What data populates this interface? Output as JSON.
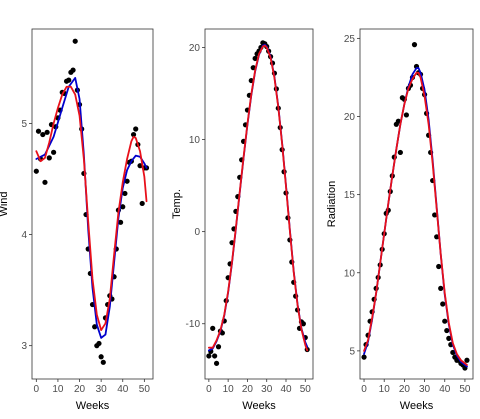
{
  "colors": {
    "points": "#000000",
    "smooth_blue": "#0000cc",
    "smooth_red": "#e8101a",
    "axis": "#333333",
    "tick_text": "#4d4d4d",
    "background": "#ffffff"
  },
  "chart_data": [
    {
      "type": "scatter",
      "xlabel": "Weeks",
      "ylabel": "Wind",
      "xlim": [
        -2,
        54
      ],
      "ylim": [
        2.7,
        5.85
      ],
      "xticks": [
        0,
        10,
        20,
        30,
        40,
        50
      ],
      "yticks": [
        3,
        4,
        5
      ],
      "xtick_labels": [
        "0",
        "10",
        "20",
        "30",
        "40",
        "50"
      ],
      "ytick_labels": [
        "3",
        "4",
        "5"
      ],
      "points": [
        [
          0,
          4.57
        ],
        [
          1,
          4.93
        ],
        [
          2,
          4.68
        ],
        [
          3,
          4.9
        ],
        [
          4,
          4.47
        ],
        [
          5,
          4.92
        ],
        [
          6,
          4.69
        ],
        [
          7,
          4.99
        ],
        [
          8,
          4.74
        ],
        [
          9,
          4.97
        ],
        [
          10,
          5.05
        ],
        [
          11,
          5.12
        ],
        [
          12,
          5.28
        ],
        [
          13,
          5.27
        ],
        [
          14,
          5.38
        ],
        [
          15,
          5.39
        ],
        [
          16,
          5.46
        ],
        [
          17,
          5.48
        ],
        [
          18,
          5.74
        ],
        [
          19,
          5.3
        ],
        [
          20,
          5.17
        ],
        [
          21,
          4.95
        ],
        [
          22,
          4.55
        ],
        [
          23,
          4.18
        ],
        [
          24,
          3.87
        ],
        [
          25,
          3.65
        ],
        [
          26,
          3.37
        ],
        [
          27,
          3.17
        ],
        [
          28,
          3.0
        ],
        [
          29,
          3.02
        ],
        [
          30,
          2.9
        ],
        [
          31,
          2.85
        ],
        [
          32,
          3.25
        ],
        [
          33,
          3.37
        ],
        [
          34,
          3.45
        ],
        [
          35,
          3.42
        ],
        [
          36,
          3.62
        ],
        [
          37,
          3.87
        ],
        [
          38,
          4.22
        ],
        [
          39,
          4.11
        ],
        [
          40,
          4.25
        ],
        [
          41,
          4.37
        ],
        [
          42,
          4.48
        ],
        [
          43,
          4.65
        ],
        [
          44,
          4.66
        ],
        [
          45,
          4.9
        ],
        [
          46,
          4.95
        ],
        [
          47,
          4.81
        ],
        [
          48,
          4.62
        ],
        [
          49,
          4.28
        ],
        [
          50,
          4.6
        ],
        [
          51,
          4.6
        ]
      ],
      "smooth_blue": [
        [
          0,
          4.68
        ],
        [
          4,
          4.72
        ],
        [
          8,
          4.88
        ],
        [
          12,
          5.14
        ],
        [
          15,
          5.33
        ],
        [
          18,
          5.41
        ],
        [
          20,
          5.22
        ],
        [
          22,
          4.72
        ],
        [
          24,
          4.05
        ],
        [
          26,
          3.52
        ],
        [
          28,
          3.19
        ],
        [
          30,
          3.07
        ],
        [
          32,
          3.1
        ],
        [
          34,
          3.35
        ],
        [
          36,
          3.75
        ],
        [
          38,
          4.15
        ],
        [
          40,
          4.42
        ],
        [
          42,
          4.58
        ],
        [
          44,
          4.66
        ],
        [
          46,
          4.71
        ],
        [
          48,
          4.7
        ],
        [
          50,
          4.64
        ],
        [
          51,
          4.6
        ]
      ],
      "smooth_red": [
        [
          0,
          4.75
        ],
        [
          2,
          4.66
        ],
        [
          4,
          4.69
        ],
        [
          6,
          4.83
        ],
        [
          8,
          5.0
        ],
        [
          10,
          5.14
        ],
        [
          12,
          5.26
        ],
        [
          14,
          5.33
        ],
        [
          16,
          5.33
        ],
        [
          18,
          5.26
        ],
        [
          20,
          5.07
        ],
        [
          22,
          4.68
        ],
        [
          24,
          4.12
        ],
        [
          26,
          3.6
        ],
        [
          28,
          3.28
        ],
        [
          30,
          3.14
        ],
        [
          32,
          3.2
        ],
        [
          34,
          3.42
        ],
        [
          36,
          3.82
        ],
        [
          38,
          4.2
        ],
        [
          40,
          4.47
        ],
        [
          42,
          4.68
        ],
        [
          44,
          4.84
        ],
        [
          45,
          4.88
        ],
        [
          46,
          4.87
        ],
        [
          48,
          4.75
        ],
        [
          50,
          4.52
        ],
        [
          51,
          4.3
        ]
      ]
    },
    {
      "type": "scatter",
      "xlabel": "Weeks",
      "ylabel": "Temp.",
      "xlim": [
        -2,
        54
      ],
      "ylim": [
        -16,
        22
      ],
      "xticks": [
        0,
        10,
        20,
        30,
        40,
        50
      ],
      "yticks": [
        -10,
        0,
        10,
        20
      ],
      "xtick_labels": [
        "0",
        "10",
        "20",
        "30",
        "40",
        "50"
      ],
      "ytick_labels": [
        "-10",
        "0",
        "10",
        "20"
      ],
      "points": [
        [
          0,
          -13.5
        ],
        [
          1,
          -13
        ],
        [
          2,
          -10.5
        ],
        [
          3,
          -13.5
        ],
        [
          4,
          -14.3
        ],
        [
          5,
          -12.5
        ],
        [
          6,
          -10.8
        ],
        [
          7,
          -11
        ],
        [
          8,
          -9.7
        ],
        [
          9,
          -7.5
        ],
        [
          10,
          -5
        ],
        [
          11,
          -3.5
        ],
        [
          12,
          -1.2
        ],
        [
          13,
          0.3
        ],
        [
          14,
          2.2
        ],
        [
          15,
          3.8
        ],
        [
          16,
          5.9
        ],
        [
          17,
          7.8
        ],
        [
          18,
          9.8
        ],
        [
          19,
          11.6
        ],
        [
          20,
          13.2
        ],
        [
          21,
          14.8
        ],
        [
          22,
          16.4
        ],
        [
          23,
          17.8
        ],
        [
          24,
          18.8
        ],
        [
          25,
          19.3
        ],
        [
          26,
          19.6
        ],
        [
          27,
          20.0
        ],
        [
          28,
          20.5
        ],
        [
          29,
          20.4
        ],
        [
          30,
          20.1
        ],
        [
          31,
          19.6
        ],
        [
          32,
          19.0
        ],
        [
          33,
          18.3
        ],
        [
          34,
          17.2
        ],
        [
          35,
          15.5
        ],
        [
          36,
          13.4
        ],
        [
          37,
          11.3
        ],
        [
          38,
          8.9
        ],
        [
          39,
          6.5
        ],
        [
          40,
          4.2
        ],
        [
          41,
          1.5
        ],
        [
          42,
          -0.9
        ],
        [
          43,
          -3.3
        ],
        [
          44,
          -5.5
        ],
        [
          45,
          -7.0
        ],
        [
          46,
          -8.5
        ],
        [
          47,
          -10.5
        ],
        [
          48,
          -9.8
        ],
        [
          49,
          -10.0
        ],
        [
          50,
          -11.5
        ],
        [
          51,
          -12.8
        ]
      ],
      "smooth_blue": [
        [
          0,
          -12.9
        ],
        [
          2,
          -12.7
        ],
        [
          4,
          -11.9
        ],
        [
          6,
          -10.8
        ],
        [
          8,
          -9.1
        ],
        [
          10,
          -6.6
        ],
        [
          12,
          -3.4
        ],
        [
          14,
          0.3
        ],
        [
          16,
          4.2
        ],
        [
          18,
          8.0
        ],
        [
          20,
          11.6
        ],
        [
          22,
          14.8
        ],
        [
          24,
          17.4
        ],
        [
          26,
          19.2
        ],
        [
          28,
          20.2
        ],
        [
          29,
          20.3
        ],
        [
          30,
          20.1
        ],
        [
          32,
          19.0
        ],
        [
          34,
          16.8
        ],
        [
          36,
          13.6
        ],
        [
          38,
          9.6
        ],
        [
          40,
          5.0
        ],
        [
          42,
          0.2
        ],
        [
          44,
          -4.3
        ],
        [
          46,
          -7.9
        ],
        [
          48,
          -10.5
        ],
        [
          50,
          -12.0
        ],
        [
          51,
          -12.5
        ]
      ],
      "smooth_red": [
        [
          0,
          -12.6
        ],
        [
          2,
          -12.6
        ],
        [
          4,
          -11.8
        ],
        [
          6,
          -10.7
        ],
        [
          8,
          -9.0
        ],
        [
          10,
          -6.5
        ],
        [
          12,
          -3.3
        ],
        [
          14,
          0.4
        ],
        [
          16,
          4.3
        ],
        [
          18,
          8.1
        ],
        [
          20,
          11.7
        ],
        [
          22,
          14.9
        ],
        [
          24,
          17.5
        ],
        [
          26,
          19.3
        ],
        [
          28,
          20.1
        ],
        [
          29,
          20.2
        ],
        [
          30,
          20.0
        ],
        [
          32,
          18.9
        ],
        [
          34,
          16.7
        ],
        [
          36,
          13.5
        ],
        [
          38,
          9.5
        ],
        [
          40,
          4.9
        ],
        [
          42,
          0.1
        ],
        [
          44,
          -4.4
        ],
        [
          46,
          -8.0
        ],
        [
          48,
          -10.6
        ],
        [
          50,
          -12.3
        ],
        [
          51,
          -12.9
        ]
      ]
    },
    {
      "type": "scatter",
      "xlabel": "Weeks",
      "ylabel": "Radiation",
      "xlim": [
        -2,
        54
      ],
      "ylim": [
        3.2,
        25.6
      ],
      "xticks": [
        0,
        10,
        20,
        30,
        40,
        50
      ],
      "yticks": [
        5,
        10,
        15,
        20,
        25
      ],
      "xtick_labels": [
        "0",
        "10",
        "20",
        "30",
        "40",
        "50"
      ],
      "ytick_labels": [
        "5",
        "10",
        "15",
        "20",
        "25"
      ],
      "points": [
        [
          0,
          4.6
        ],
        [
          1,
          5.4
        ],
        [
          2,
          6.0
        ],
        [
          3,
          6.9
        ],
        [
          4,
          7.5
        ],
        [
          5,
          8.3
        ],
        [
          6,
          9.0
        ],
        [
          7,
          9.7
        ],
        [
          8,
          10.5
        ],
        [
          9,
          11.5
        ],
        [
          10,
          12.5
        ],
        [
          11,
          13.8
        ],
        [
          12,
          14.0
        ],
        [
          13,
          15.2
        ],
        [
          14,
          16.2
        ],
        [
          15,
          17.4
        ],
        [
          16,
          19.5
        ],
        [
          17,
          19.7
        ],
        [
          18,
          17.7
        ],
        [
          19,
          21.2
        ],
        [
          20,
          21.1
        ],
        [
          21,
          20.1
        ],
        [
          22,
          21.8
        ],
        [
          23,
          22.0
        ],
        [
          24,
          22.5
        ],
        [
          25,
          24.6
        ],
        [
          26,
          23.2
        ],
        [
          27,
          22.8
        ],
        [
          28,
          22.7
        ],
        [
          29,
          21.8
        ],
        [
          30,
          21.4
        ],
        [
          31,
          20.2
        ],
        [
          32,
          18.8
        ],
        [
          33,
          17.7
        ],
        [
          34,
          15.9
        ],
        [
          35,
          13.7
        ],
        [
          36,
          12.3
        ],
        [
          37,
          10.4
        ],
        [
          38,
          9.0
        ],
        [
          39,
          8.0
        ],
        [
          40,
          6.9
        ],
        [
          41,
          6.3
        ],
        [
          42,
          5.8
        ],
        [
          43,
          5.4
        ],
        [
          44,
          4.9
        ],
        [
          45,
          4.6
        ],
        [
          46,
          4.4
        ],
        [
          47,
          4.4
        ],
        [
          48,
          4.2
        ],
        [
          49,
          4.1
        ],
        [
          50,
          3.9
        ],
        [
          51,
          4.4
        ]
      ],
      "smooth_blue": [
        [
          0,
          4.8
        ],
        [
          2,
          5.6
        ],
        [
          4,
          7.0
        ],
        [
          6,
          8.7
        ],
        [
          8,
          10.6
        ],
        [
          10,
          12.5
        ],
        [
          12,
          14.4
        ],
        [
          14,
          16.2
        ],
        [
          16,
          17.9
        ],
        [
          18,
          19.5
        ],
        [
          20,
          20.8
        ],
        [
          22,
          21.9
        ],
        [
          24,
          22.7
        ],
        [
          26,
          23.1
        ],
        [
          27,
          23.1
        ],
        [
          28,
          22.8
        ],
        [
          30,
          21.7
        ],
        [
          32,
          19.8
        ],
        [
          34,
          17.2
        ],
        [
          36,
          14.2
        ],
        [
          38,
          11.2
        ],
        [
          40,
          8.6
        ],
        [
          42,
          6.7
        ],
        [
          44,
          5.4
        ],
        [
          46,
          4.7
        ],
        [
          48,
          4.3
        ],
        [
          50,
          4.1
        ],
        [
          51,
          4.0
        ]
      ],
      "smooth_red": [
        [
          0,
          5.0
        ],
        [
          2,
          5.7
        ],
        [
          4,
          7.1
        ],
        [
          6,
          8.7
        ],
        [
          8,
          10.6
        ],
        [
          10,
          12.5
        ],
        [
          12,
          14.4
        ],
        [
          14,
          16.2
        ],
        [
          16,
          17.9
        ],
        [
          18,
          19.5
        ],
        [
          20,
          20.8
        ],
        [
          22,
          21.8
        ],
        [
          24,
          22.4
        ],
        [
          26,
          22.8
        ],
        [
          27,
          22.8
        ],
        [
          28,
          22.5
        ],
        [
          30,
          21.3
        ],
        [
          32,
          19.5
        ],
        [
          34,
          17.0
        ],
        [
          36,
          14.1
        ],
        [
          38,
          11.2
        ],
        [
          40,
          8.7
        ],
        [
          42,
          6.8
        ],
        [
          44,
          5.5
        ],
        [
          46,
          4.8
        ],
        [
          48,
          4.4
        ],
        [
          50,
          4.2
        ],
        [
          51,
          4.1
        ]
      ]
    }
  ]
}
